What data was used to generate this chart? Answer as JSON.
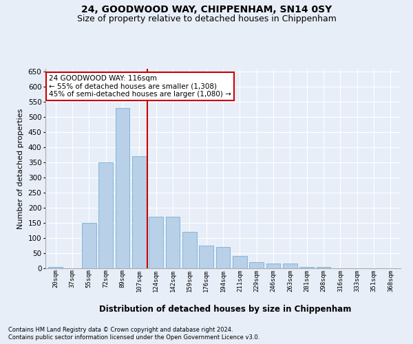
{
  "title1": "24, GOODWOOD WAY, CHIPPENHAM, SN14 0SY",
  "title2": "Size of property relative to detached houses in Chippenham",
  "xlabel": "Distribution of detached houses by size in Chippenham",
  "ylabel": "Number of detached properties",
  "categories": [
    "20sqm",
    "37sqm",
    "55sqm",
    "72sqm",
    "89sqm",
    "107sqm",
    "124sqm",
    "142sqm",
    "159sqm",
    "176sqm",
    "194sqm",
    "211sqm",
    "229sqm",
    "246sqm",
    "263sqm",
    "281sqm",
    "298sqm",
    "316sqm",
    "333sqm",
    "351sqm",
    "368sqm"
  ],
  "values": [
    5,
    0,
    150,
    350,
    530,
    370,
    170,
    170,
    120,
    75,
    70,
    40,
    20,
    15,
    15,
    5,
    5,
    0,
    0,
    0,
    0
  ],
  "bar_color": "#b8d0e8",
  "bar_edge_color": "#7aafd4",
  "vline_x": 5.5,
  "vline_color": "#cc0000",
  "annotation_text": "24 GOODWOOD WAY: 116sqm\n← 55% of detached houses are smaller (1,308)\n45% of semi-detached houses are larger (1,080) →",
  "annotation_box_color": "#ffffff",
  "annotation_box_edge": "#cc0000",
  "ylim": [
    0,
    660
  ],
  "yticks": [
    0,
    50,
    100,
    150,
    200,
    250,
    300,
    350,
    400,
    450,
    500,
    550,
    600,
    650
  ],
  "footer1": "Contains HM Land Registry data © Crown copyright and database right 2024.",
  "footer2": "Contains public sector information licensed under the Open Government Licence v3.0.",
  "bg_color": "#e8eef8",
  "grid_color": "#ffffff",
  "title1_fontsize": 10,
  "title2_fontsize": 9,
  "xlabel_fontsize": 8.5,
  "ylabel_fontsize": 8
}
